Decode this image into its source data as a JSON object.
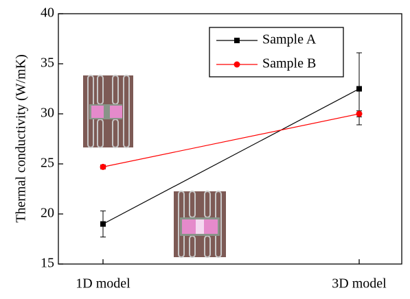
{
  "chart_data": {
    "type": "line",
    "y_label": "Thermal conductivity (W/mK)",
    "categories": [
      "1D model",
      "3D model"
    ],
    "series": [
      {
        "name": "Sample A",
        "color": "#000000",
        "marker": "square",
        "values": [
          19.0,
          32.5
        ],
        "errors": [
          1.3,
          3.6
        ]
      },
      {
        "name": "Sample B",
        "color": "#ff0000",
        "marker": "circle",
        "values": [
          24.7,
          30.0
        ],
        "errors": [
          0.2,
          0.3
        ]
      }
    ],
    "ylim": [
      15,
      40
    ],
    "yticks": [
      15,
      20,
      25,
      30,
      35,
      40
    ],
    "legend": "upper right"
  }
}
